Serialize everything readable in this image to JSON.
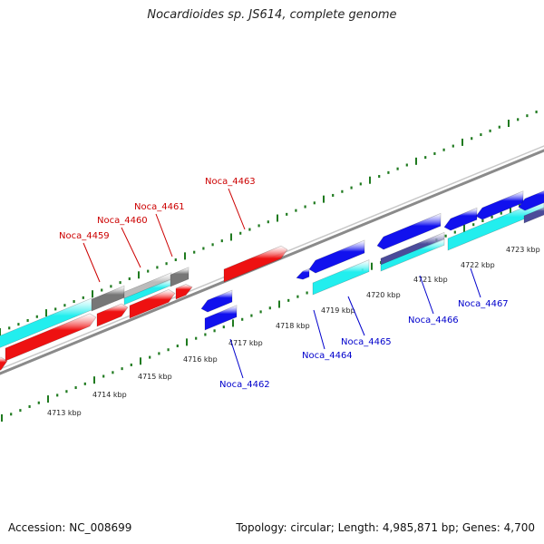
{
  "header": {
    "title": "Nocardioides sp. JS614, complete genome"
  },
  "footer": {
    "accession": "Accession: NC_008699",
    "topology": "Topology: circular; Length: 4,985,871 bp; Genes: 4,700"
  },
  "colors": {
    "backbone": "#8a8a8a",
    "tick": "#1f7a1f",
    "forward_label": "#cc0000",
    "reverse_label": "#0000cc",
    "cds_red": "#ee1111",
    "cds_blue": "#1111ee",
    "cds_cyan": "#22eeee",
    "cds_gray": "#777777",
    "cds_lightgray": "#bbbbbb",
    "cds_slate": "#4b4b9a"
  },
  "scale_labels": [
    "4713 kbp",
    "4714 kbp",
    "4715 kbp",
    "4716 kbp",
    "4717 kbp",
    "4718 kbp",
    "4719 kbp",
    "4720 kbp",
    "4721 kbp",
    "4722 kbp",
    "4723 kbp"
  ],
  "gene_labels": {
    "forward": [
      "Noca_4459",
      "Noca_4460",
      "Noca_4461",
      "Noca_4463"
    ],
    "reverse": [
      "Noca_4462",
      "Noca_4464",
      "Noca_4465",
      "Noca_4466",
      "Noca_4467"
    ]
  }
}
